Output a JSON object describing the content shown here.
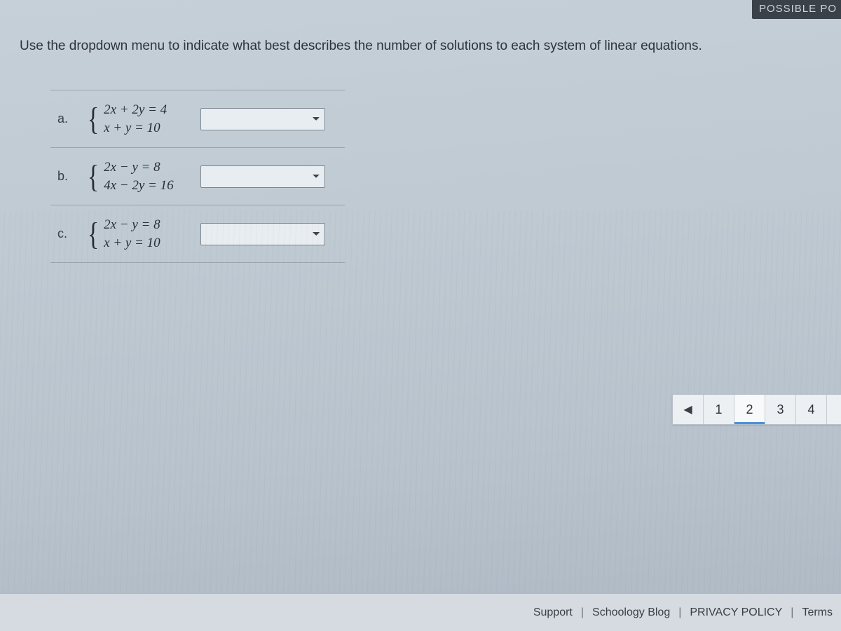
{
  "corner_label": "POSSIBLE PO",
  "instruction": "Use the dropdown menu to indicate what best describes the number of solutions to each system of linear equations.",
  "questions": [
    {
      "label": "a.",
      "eq1": "2x + 2y = 4",
      "eq2": "x + y = 10",
      "selected": ""
    },
    {
      "label": "b.",
      "eq1": "2x − y = 8",
      "eq2": "4x − 2y = 16",
      "selected": ""
    },
    {
      "label": "c.",
      "eq1": "2x − y = 8",
      "eq2": "x + y = 10",
      "selected": ""
    }
  ],
  "pager": {
    "prev_glyph": "◀",
    "pages": [
      "1",
      "2",
      "3",
      "4"
    ],
    "current_index": 1,
    "overflow_hint": ""
  },
  "footer": {
    "links": [
      "Support",
      "Schoology Blog",
      "PRIVACY POLICY",
      "Terms"
    ],
    "separator": "|"
  }
}
